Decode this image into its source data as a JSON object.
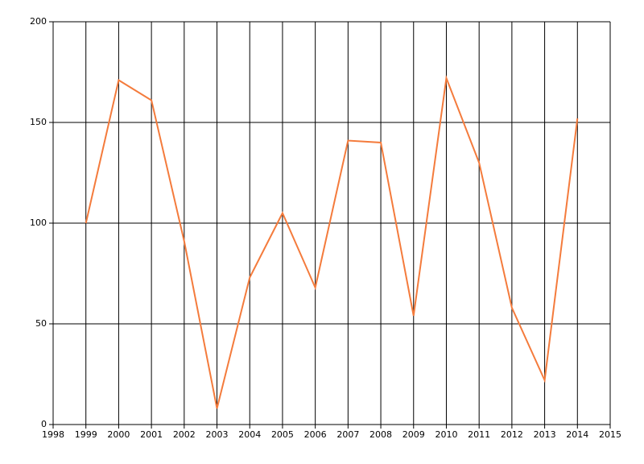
{
  "chart_data": {
    "type": "line",
    "x": [
      1999,
      2000,
      2001,
      2002,
      2003,
      2004,
      2005,
      2006,
      2007,
      2008,
      2009,
      2010,
      2011,
      2012,
      2013,
      2014
    ],
    "series": [
      {
        "color": "#f47b3c",
        "values": [
          100,
          171,
          161,
          91,
          8,
          73,
          105,
          68,
          141,
          140,
          54,
          172,
          130,
          58,
          22,
          152
        ]
      }
    ],
    "xlim": [
      1998,
      2015
    ],
    "xticks": [
      1998,
      1999,
      2000,
      2001,
      2002,
      2003,
      2004,
      2005,
      2006,
      2007,
      2008,
      2009,
      2010,
      2011,
      2012,
      2013,
      2014,
      2015
    ],
    "ylim": [
      0,
      200
    ],
    "yticks": [
      0,
      50,
      100,
      150,
      200
    ],
    "grid": true
  }
}
